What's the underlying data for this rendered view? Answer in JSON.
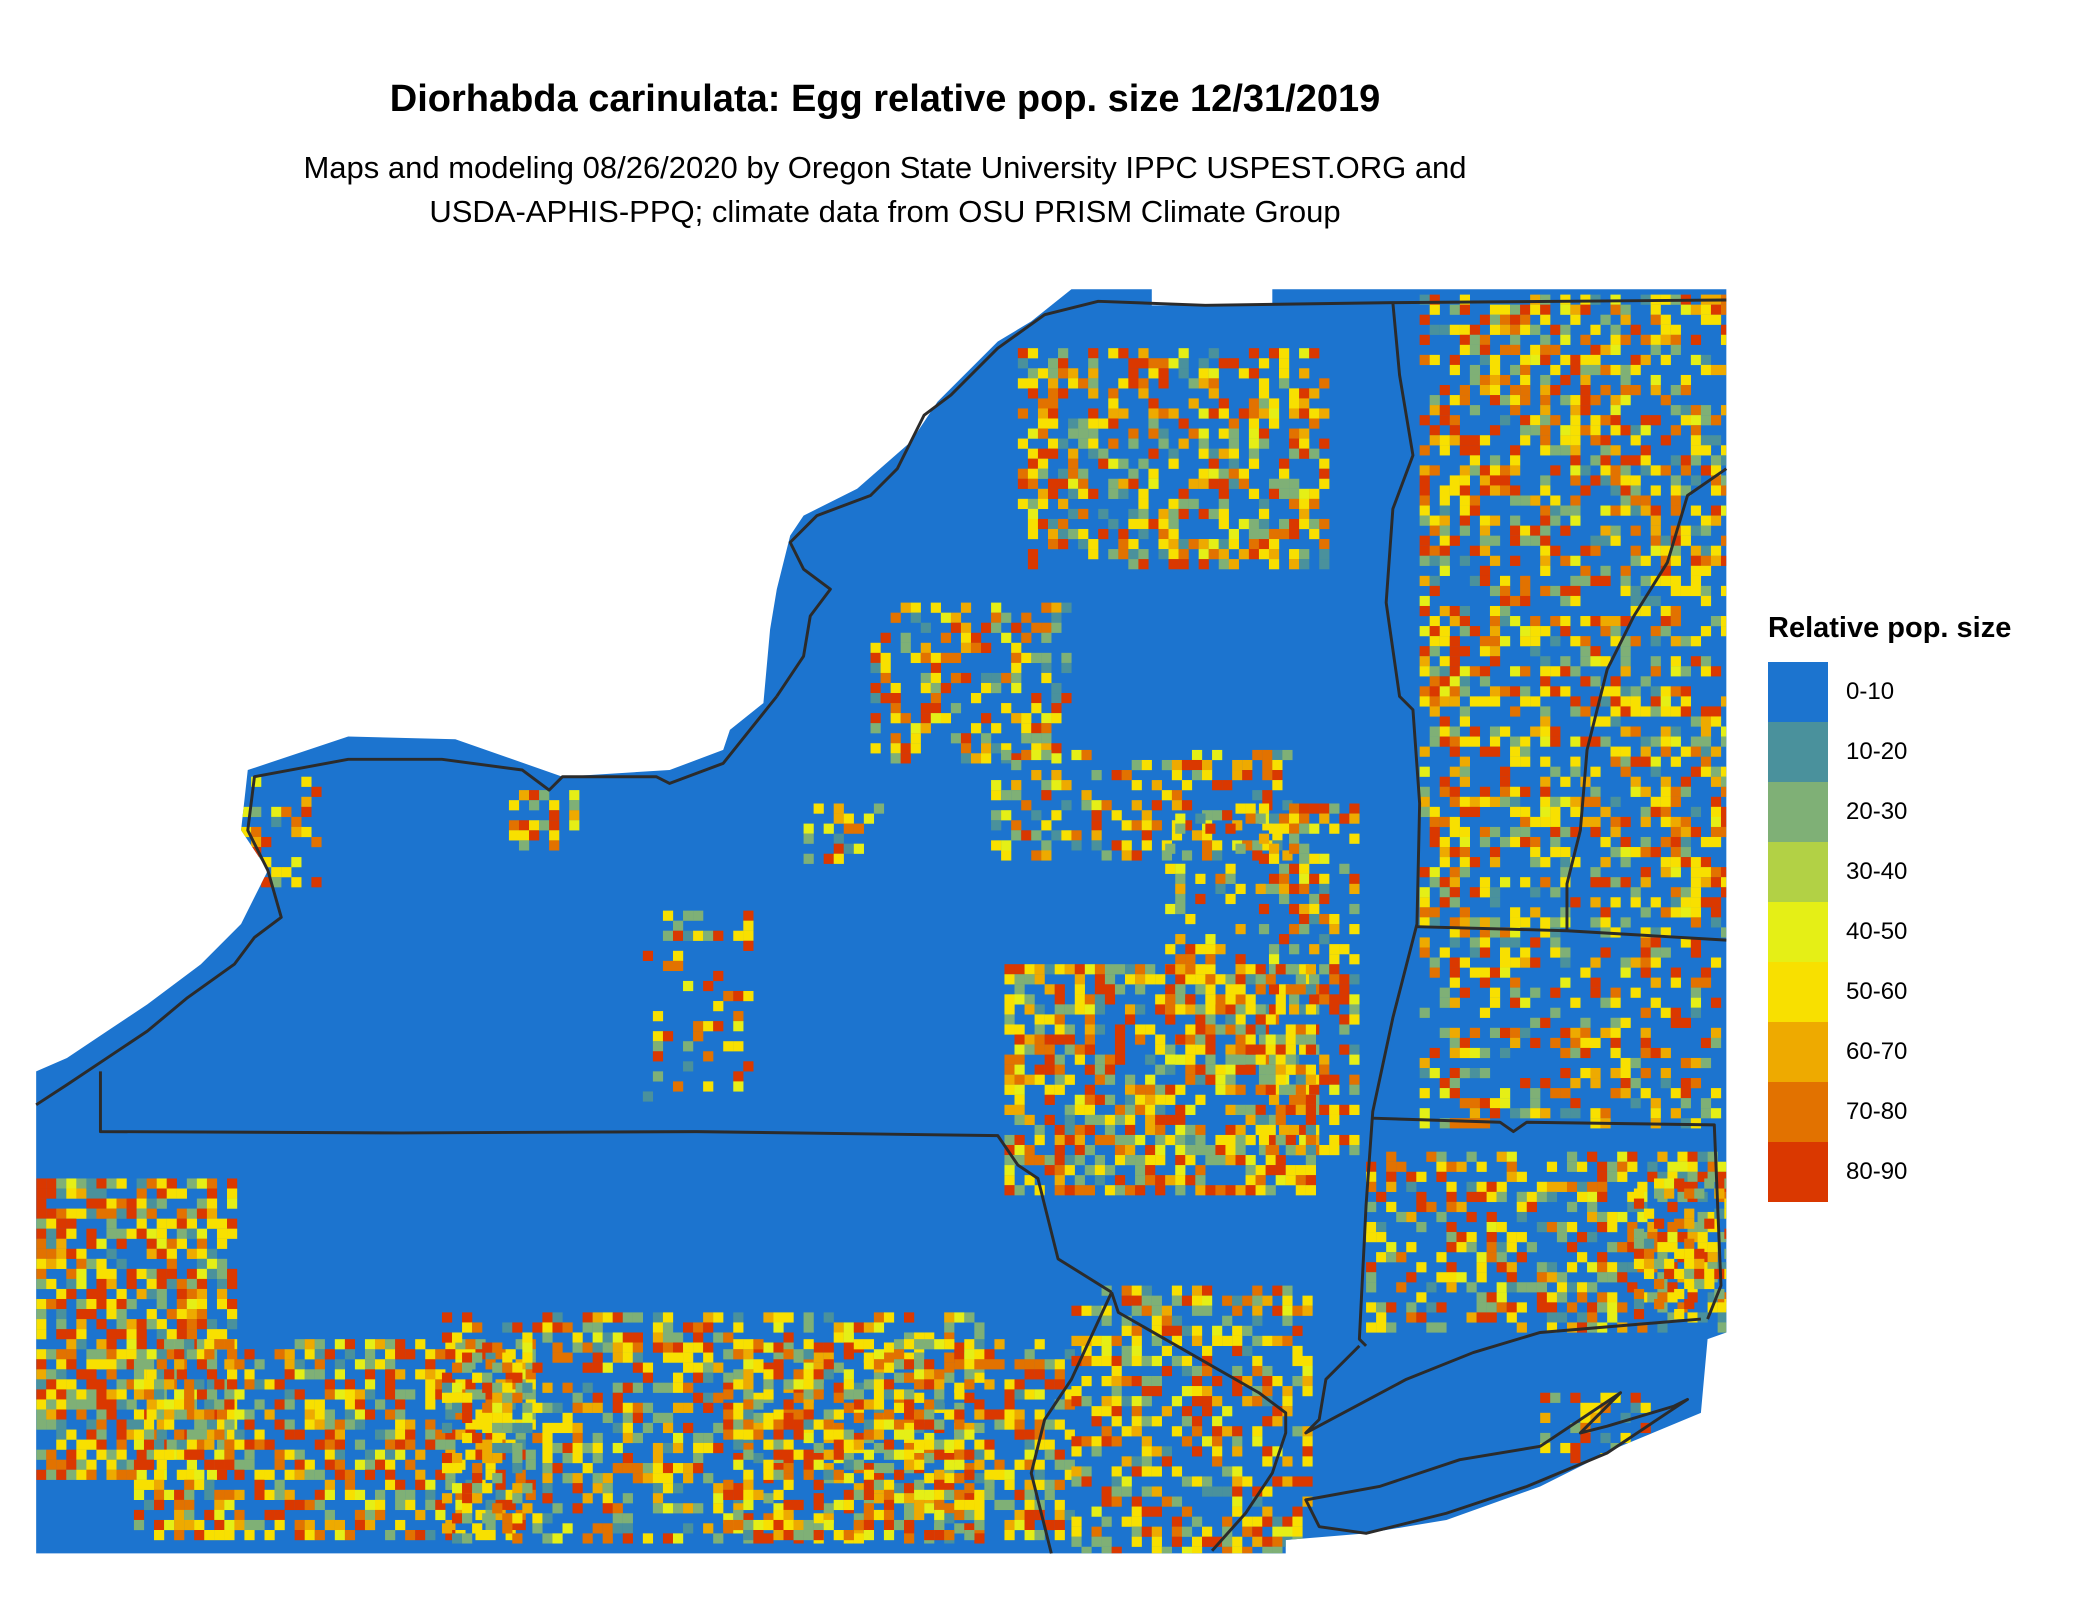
{
  "title": "Diorhabda carinulata: Egg relative pop. size 12/31/2019",
  "subtitle": [
    "Maps and modeling 08/26/2020 by Oregon State University IPPC USPEST.ORG and",
    "USDA-APHIS-PPQ; climate data from OSU PRISM Climate Group"
  ],
  "legend": {
    "title": "Relative pop. size",
    "items": [
      {
        "label": "0-10",
        "color": "#1c74cf"
      },
      {
        "label": "10-20",
        "color": "#4a919c"
      },
      {
        "label": "20-30",
        "color": "#7fb076"
      },
      {
        "label": "30-40",
        "color": "#b2d145"
      },
      {
        "label": "40-50",
        "color": "#e5ef16"
      },
      {
        "label": "50-60",
        "color": "#f8e000"
      },
      {
        "label": "60-70",
        "color": "#eeaa00"
      },
      {
        "label": "70-80",
        "color": "#e27200"
      },
      {
        "label": "80-90",
        "color": "#da3800"
      }
    ]
  },
  "colors": {
    "border": "#2b2b2b",
    "background": "#ffffff"
  }
}
